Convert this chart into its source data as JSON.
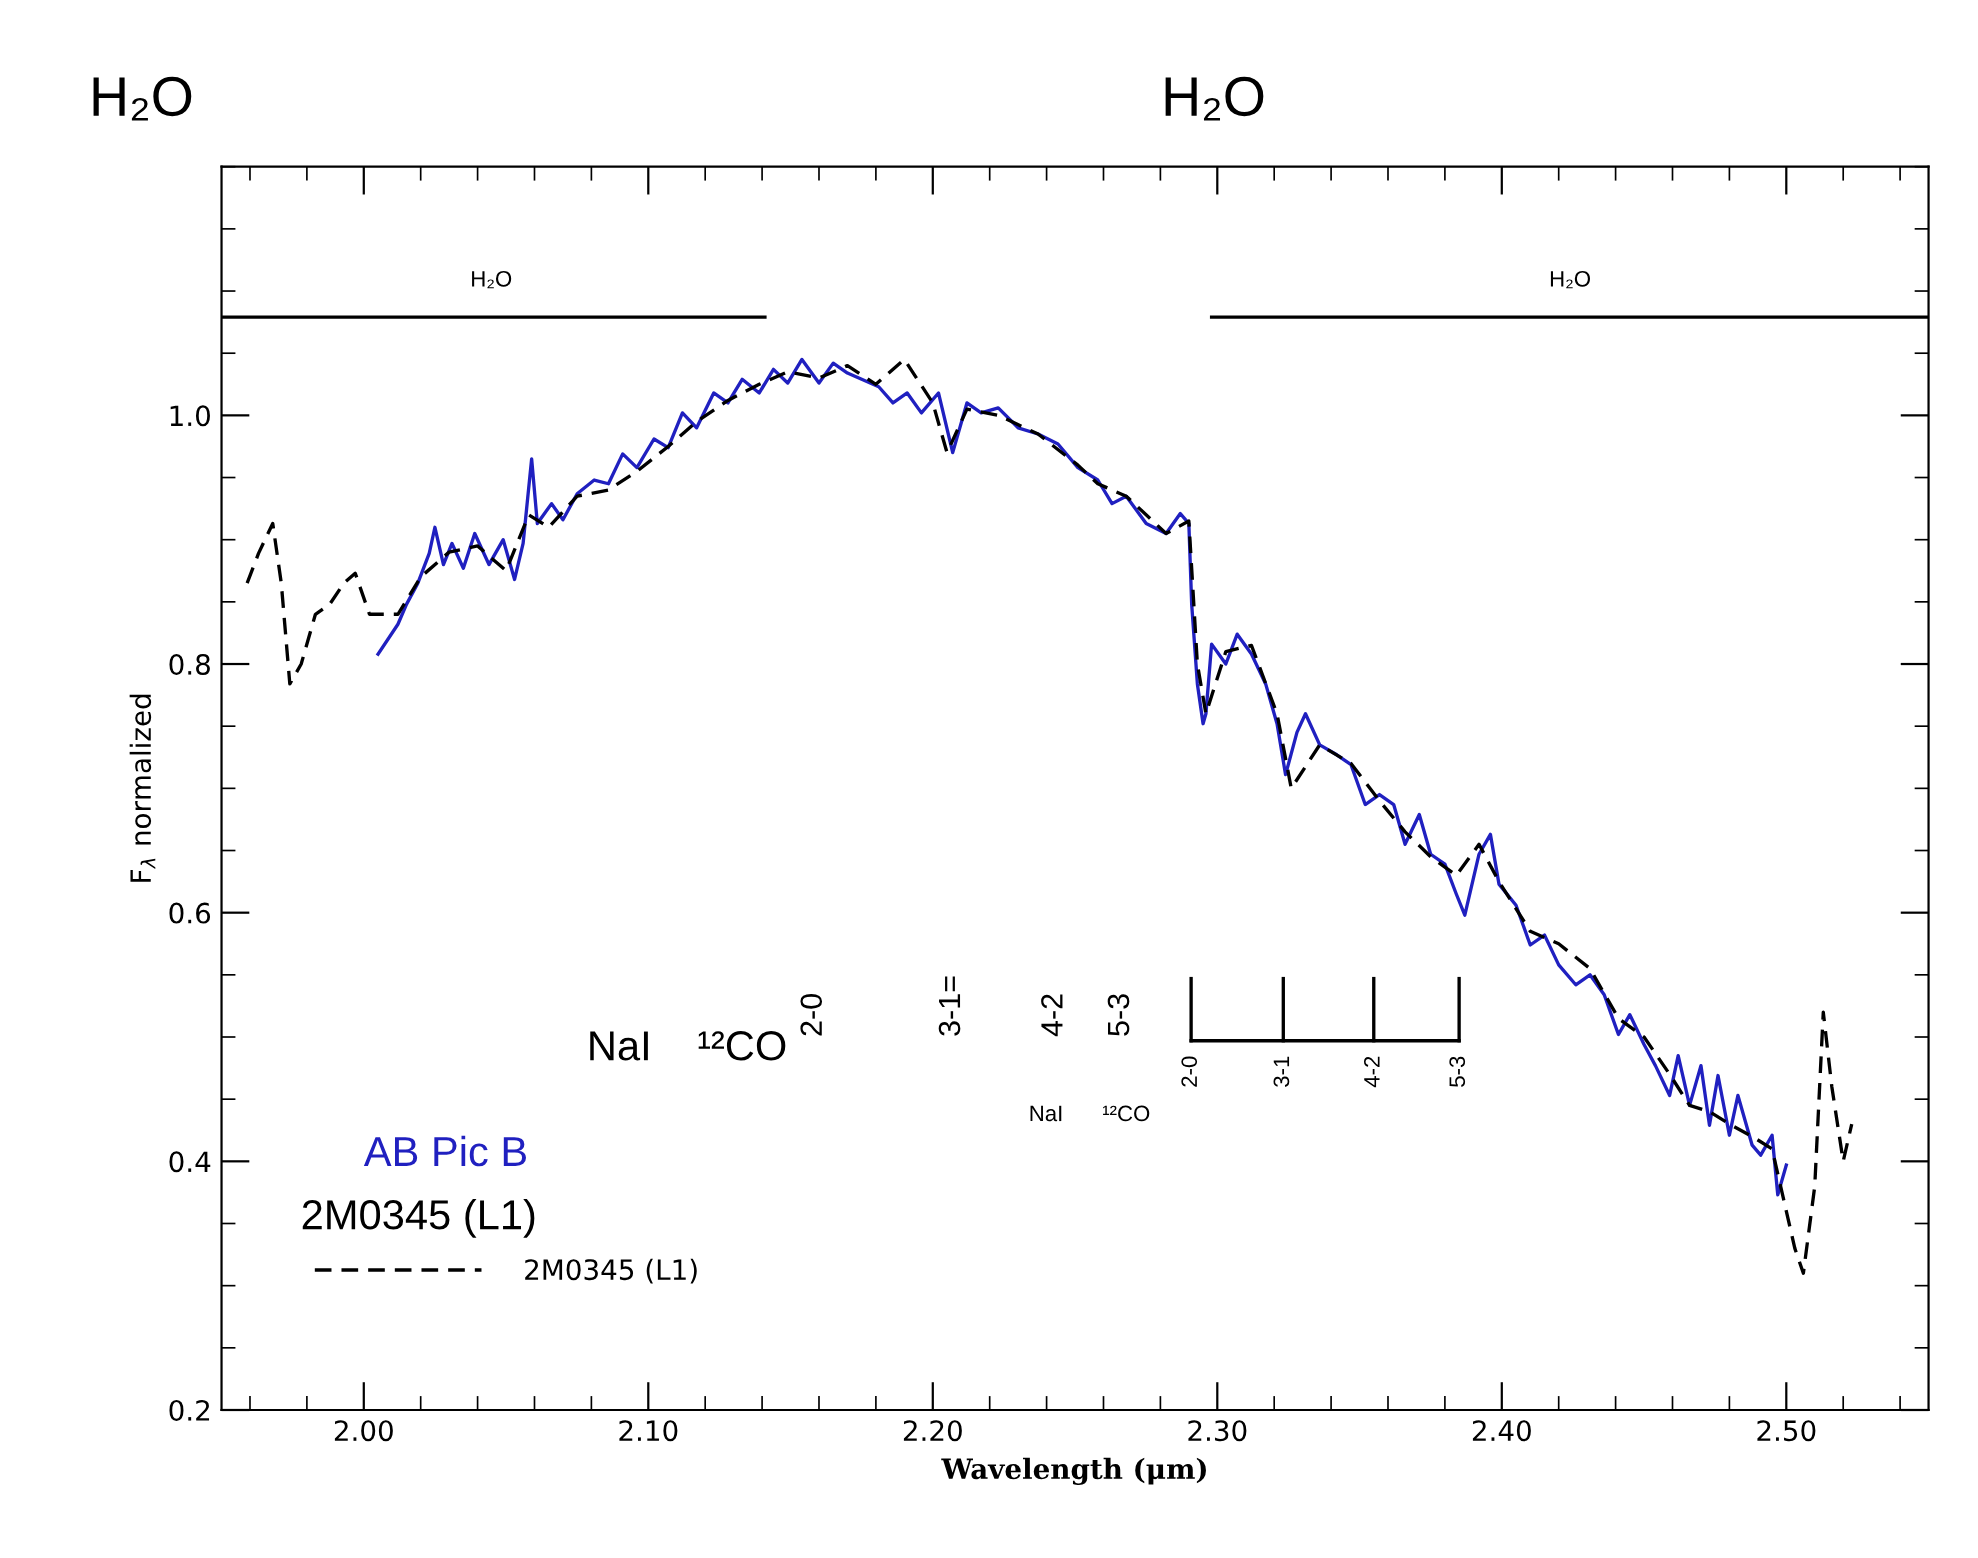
{
  "chart_data": {
    "type": "line",
    "xlabel": "Wavelength (μm)",
    "ylabel": "F$_{λ}$ normalized",
    "xlim": [
      1.95,
      2.55
    ],
    "xticks": [
      {
        "value": 2.0,
        "label": "2.00"
      },
      {
        "value": 2.1,
        "label": "2.10"
      },
      {
        "value": 2.2,
        "label": "2.20"
      },
      {
        "value": 2.3,
        "label": "2.30"
      },
      {
        "value": 2.4,
        "label": "2.40"
      },
      {
        "value": 2.5,
        "label": "2.50"
      }
    ],
    "ylim": [
      0.2,
      1.2
    ],
    "yticks": [
      0.2,
      0.4,
      0.6,
      0.8,
      {
        "value": 1.0,
        "label": "1.0"
      }
    ],
    "grid": false,
    "legend": "bottom left",
    "marker": "none",
    "series": [
      {
        "name": "AB Pic B",
        "color": "#2020c0",
        "line_style": "solid",
        "x": [
          2.005,
          2.012,
          2.015,
          2.019,
          2.023,
          2.025,
          2.028,
          2.031,
          2.035,
          2.039,
          2.044,
          2.049,
          2.053,
          2.056,
          2.059,
          2.061,
          2.066,
          2.07,
          2.075,
          2.081,
          2.086,
          2.091,
          2.096,
          2.102,
          2.107,
          2.112,
          2.117,
          2.123,
          2.128,
          2.133,
          2.139,
          2.144,
          2.149,
          2.154,
          2.16,
          2.165,
          2.17,
          2.175,
          2.181,
          2.186,
          2.191,
          2.196,
          2.202,
          2.207,
          2.212,
          2.217,
          2.223,
          2.23,
          2.237,
          2.244,
          2.251,
          2.258,
          2.263,
          2.268,
          2.275,
          2.282,
          2.287,
          2.29,
          2.291,
          2.293,
          2.295,
          2.296,
          2.298,
          2.303,
          2.307,
          2.312,
          2.317,
          2.321,
          2.324,
          2.328,
          2.331,
          2.336,
          2.342,
          2.347,
          2.352,
          2.357,
          2.362,
          2.366,
          2.371,
          2.375,
          2.38,
          2.384,
          2.387,
          2.392,
          2.396,
          2.399,
          2.405,
          2.41,
          2.415,
          2.42,
          2.426,
          2.431,
          2.436,
          2.441,
          2.445,
          2.45,
          2.454,
          2.459,
          2.462,
          2.466,
          2.47,
          2.473,
          2.476,
          2.48,
          2.483,
          2.488,
          2.491,
          2.495,
          2.497,
          2.5
        ],
        "values": [
          0.808,
          0.832,
          0.848,
          0.865,
          0.889,
          0.91,
          0.88,
          0.897,
          0.877,
          0.905,
          0.88,
          0.9,
          0.868,
          0.897,
          0.965,
          0.913,
          0.929,
          0.916,
          0.937,
          0.948,
          0.945,
          0.969,
          0.958,
          0.981,
          0.974,
          1.002,
          0.99,
          1.018,
          1.01,
          1.029,
          1.018,
          1.037,
          1.026,
          1.045,
          1.026,
          1.042,
          1.034,
          1.029,
          1.023,
          1.01,
          1.018,
          1.002,
          1.018,
          0.97,
          1.01,
          1.002,
          1.006,
          0.99,
          0.985,
          0.977,
          0.958,
          0.948,
          0.929,
          0.935,
          0.913,
          0.905,
          0.921,
          0.913,
          0.848,
          0.784,
          0.752,
          0.76,
          0.816,
          0.8,
          0.824,
          0.808,
          0.784,
          0.752,
          0.711,
          0.745,
          0.76,
          0.735,
          0.727,
          0.719,
          0.687,
          0.695,
          0.687,
          0.655,
          0.679,
          0.647,
          0.639,
          0.615,
          0.598,
          0.647,
          0.663,
          0.623,
          0.606,
          0.574,
          0.582,
          0.558,
          0.542,
          0.55,
          0.534,
          0.502,
          0.518,
          0.494,
          0.477,
          0.453,
          0.485,
          0.445,
          0.477,
          0.429,
          0.469,
          0.421,
          0.453,
          0.413,
          0.405,
          0.421,
          0.373,
          0.397
        ]
      },
      {
        "name": "2M0345 (L1)",
        "color": "#000000",
        "line_style": "dashed",
        "x": [
          1.959,
          1.963,
          1.968,
          1.971,
          1.974,
          1.978,
          1.983,
          1.988,
          1.993,
          1.997,
          2.002,
          2.012,
          2.02,
          2.03,
          2.04,
          2.05,
          2.058,
          2.065,
          2.075,
          2.086,
          2.096,
          2.107,
          2.117,
          2.128,
          2.139,
          2.149,
          2.16,
          2.17,
          2.18,
          2.19,
          2.2,
          2.205,
          2.212,
          2.223,
          2.237,
          2.251,
          2.258,
          2.268,
          2.282,
          2.29,
          2.293,
          2.296,
          2.303,
          2.312,
          2.321,
          2.326,
          2.336,
          2.347,
          2.357,
          2.366,
          2.375,
          2.384,
          2.392,
          2.399,
          2.41,
          2.42,
          2.431,
          2.441,
          2.45,
          2.459,
          2.466,
          2.473,
          2.48,
          2.488,
          2.495,
          2.5,
          2.503,
          2.506,
          2.51,
          2.513,
          2.516,
          2.52,
          2.523
        ],
        "values": [
          0.865,
          0.889,
          0.913,
          0.865,
          0.784,
          0.8,
          0.84,
          0.848,
          0.865,
          0.873,
          0.84,
          0.84,
          0.87,
          0.89,
          0.895,
          0.875,
          0.92,
          0.91,
          0.935,
          0.94,
          0.955,
          0.975,
          0.995,
          1.012,
          1.025,
          1.035,
          1.03,
          1.04,
          1.025,
          1.045,
          1.01,
          0.97,
          1.005,
          1.0,
          0.985,
          0.96,
          0.945,
          0.935,
          0.905,
          0.915,
          0.8,
          0.76,
          0.81,
          0.815,
          0.76,
          0.7,
          0.735,
          0.72,
          0.69,
          0.665,
          0.645,
          0.63,
          0.655,
          0.625,
          0.585,
          0.575,
          0.555,
          0.515,
          0.5,
          0.47,
          0.445,
          0.44,
          0.43,
          0.42,
          0.41,
          0.36,
          0.33,
          0.31,
          0.38,
          0.52,
          0.46,
          0.4,
          0.43
        ]
      },
      {
        "color": "#000000",
        "line_style": "solid",
        "x": [
          1.95,
          2.141
        ],
        "values": [
          1.079,
          1.079
        ]
      },
      {
        "color": "#000000",
        "line_style": "solid",
        "x": [
          2.298,
          2.55
        ],
        "values": [
          1.079,
          1.079
        ]
      }
    ],
    "annotations": [
      "H₂O",
      "H₂O",
      "NaI",
      "¹²CO",
      "NaI",
      "¹²CO",
      "2-0",
      "3-1=",
      "4-2",
      "5-3",
      "2-0",
      "3-1",
      "4-2",
      "5-3",
      "H₂O",
      "H₂O",
      "2M0345 (L1)"
    ]
  }
}
